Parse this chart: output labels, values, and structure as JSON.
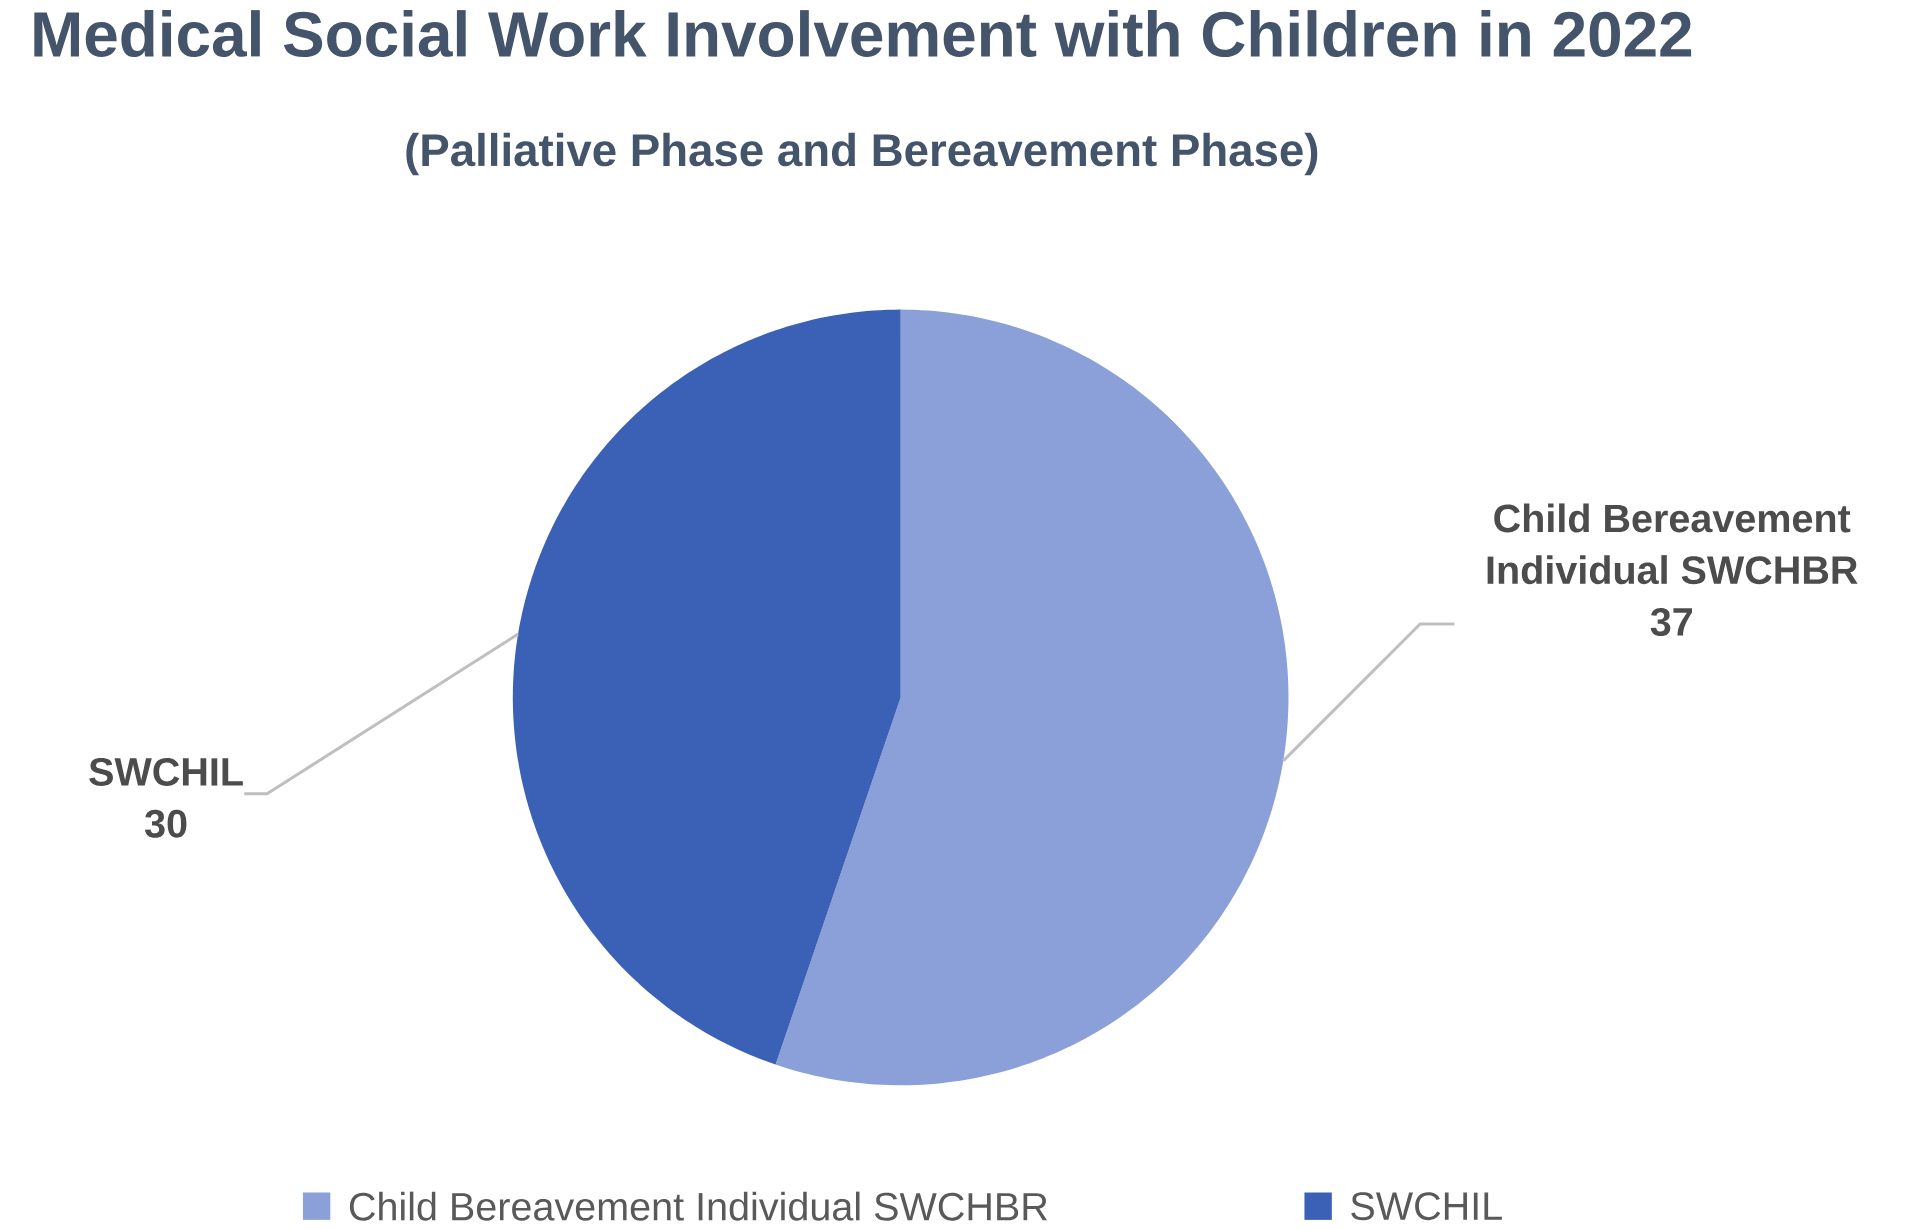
{
  "chart_data": {
    "type": "pie",
    "title": "Medical Social Work Involvement with Children in 2022",
    "subtitle": "(Palliative Phase and Bereavement Phase)",
    "categories": [
      "Child Bereavement Individual SWCHBR",
      "SWCHIL"
    ],
    "values": [
      37,
      30
    ],
    "colors": [
      "#8b9fd8",
      "#3a61b6"
    ],
    "data_labels": true,
    "legend": "bottom"
  }
}
